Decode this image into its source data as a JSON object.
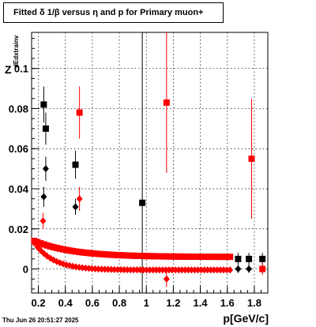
{
  "title": "Fitted δ 1/β  versus η and p for Primary muon+",
  "footer": "Thu Jun 26 20:51:27 2025",
  "chart_data": {
    "type": "scatter",
    "title": "Fitted δ 1/β  versus η and p for Primary muon+",
    "xlabel": "p[GeV/c]",
    "ylabel": "Z",
    "ylabel_sub": "dEdxtrainv",
    "xlim": [
      0.15,
      1.9
    ],
    "ylim": [
      -0.012,
      0.118
    ],
    "xticks": [
      "0.2",
      "0.4",
      "0.6",
      "0.8",
      "1",
      "1.2",
      "1.4",
      "1.6",
      "1.8"
    ],
    "yticks": [
      "0",
      "0.02",
      "0.04",
      "0.06",
      "0.08",
      "0.1"
    ],
    "grid": true,
    "colors": {
      "series_a": "#000000",
      "series_b": "#ff0000"
    },
    "series": [
      {
        "marker": "square",
        "color": "#000000",
        "points": [
          {
            "x": 0.24,
            "y": 0.082,
            "err": 0.009
          },
          {
            "x": 0.255,
            "y": 0.07,
            "err": 0.008
          },
          {
            "x": 0.475,
            "y": 0.052,
            "err": 0.007
          },
          {
            "x": 0.97,
            "y": 0.033,
            "err": 0.12
          },
          {
            "x": 1.68,
            "y": 0.005,
            "err": 0.003
          },
          {
            "x": 1.76,
            "y": 0.005,
            "err": 0.003
          },
          {
            "x": 1.86,
            "y": 0.005,
            "err": 0.003
          }
        ]
      },
      {
        "marker": "diamond",
        "color": "#000000",
        "points": [
          {
            "x": 0.24,
            "y": 0.036,
            "err": 0.005
          },
          {
            "x": 0.255,
            "y": 0.05,
            "err": 0.006
          },
          {
            "x": 0.475,
            "y": 0.031,
            "err": 0.004
          },
          {
            "x": 1.68,
            "y": 0.0,
            "err": 0.002
          },
          {
            "x": 1.76,
            "y": 0.0,
            "err": 0.002
          },
          {
            "x": 1.86,
            "y": 0.0,
            "err": 0.002
          }
        ]
      },
      {
        "marker": "square",
        "color": "#ff0000",
        "points": [
          {
            "x": 0.505,
            "y": 0.078,
            "err": 0.013
          },
          {
            "x": 1.15,
            "y": 0.083,
            "err": 0.035
          },
          {
            "x": 1.78,
            "y": 0.055,
            "err": 0.03
          },
          {
            "x": 1.86,
            "y": 0.0,
            "err": 0.003
          }
        ]
      },
      {
        "marker": "diamond",
        "color": "#ff0000",
        "points": [
          {
            "x": 0.235,
            "y": 0.024,
            "err": 0.004
          },
          {
            "x": 0.505,
            "y": 0.035,
            "err": 0.006
          },
          {
            "x": 1.15,
            "y": -0.005,
            "err": 0.004
          }
        ]
      }
    ],
    "curves": [
      {
        "marker": "square",
        "color": "#ff0000",
        "x_start": 0.17,
        "x_end": 1.62,
        "y_start": 0.014,
        "y_floor": 0.006,
        "decay": 3.5,
        "n": 62
      },
      {
        "marker": "diamond",
        "color": "#ff0000",
        "x_start": 0.17,
        "x_end": 1.62,
        "y_start": 0.013,
        "y_floor": -0.0005,
        "decay": 7.0,
        "n": 62
      }
    ]
  }
}
